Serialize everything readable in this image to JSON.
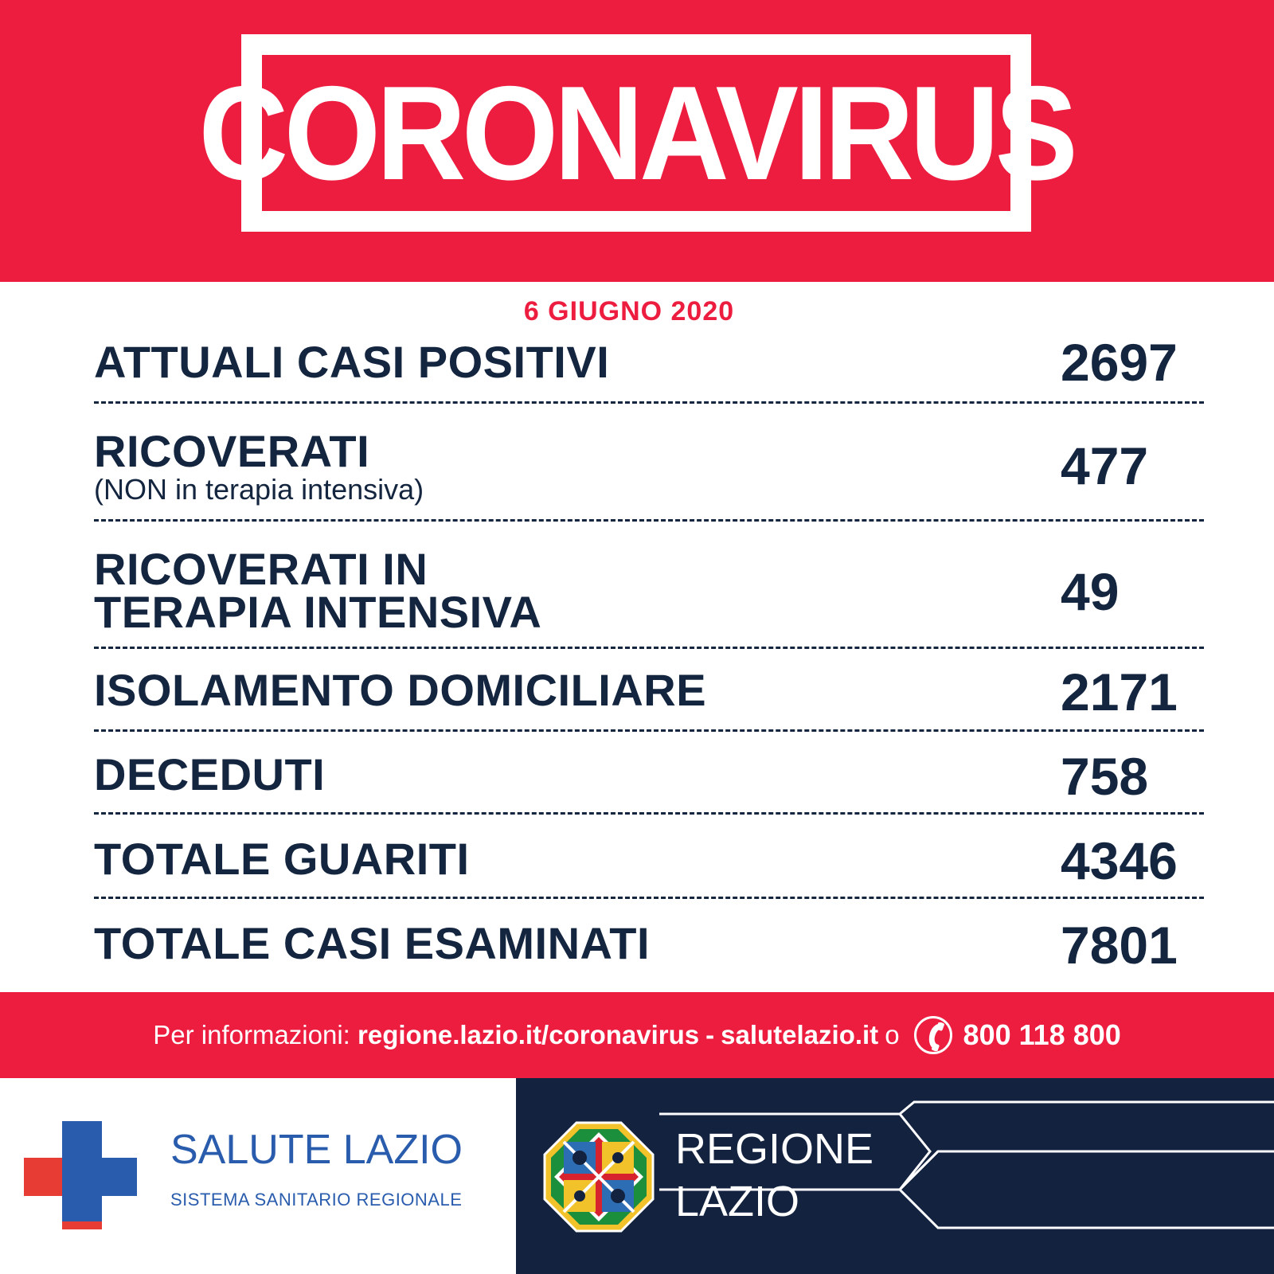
{
  "header": {
    "title": "CORONAVIRUS"
  },
  "date": "6 GIUGNO 2020",
  "stats": [
    {
      "label": "ATTUALI CASI POSITIVI",
      "value": "2697"
    },
    {
      "label": "RICOVERATI",
      "sublabel": "(NON in terapia intensiva)",
      "value": "477"
    },
    {
      "label_line1": "RICOVERATI IN",
      "label_line2": "TERAPIA INTENSIVA",
      "value": "49"
    },
    {
      "label": "ISOLAMENTO DOMICILIARE",
      "value": "2171"
    },
    {
      "label": "DECEDUTI",
      "value": "758"
    },
    {
      "label": "TOTALE GUARITI",
      "value": "4346"
    },
    {
      "label": "TOTALE CASI ESAMINATI",
      "value": "7801"
    }
  ],
  "info": {
    "prefix": "Per informazioni:",
    "link1": "regione.lazio.it/coronavirus",
    "dash": "-",
    "link2": "salutelazio.it",
    "or": "o",
    "phone_icon": "phone-icon",
    "phone": "800 118 800"
  },
  "footer": {
    "salute_title": "SALUTE LAZIO",
    "salute_subtitle": "SISTEMA SANITARIO REGIONALE",
    "regione_line1": "REGIONE",
    "regione_line2": "LAZIO"
  },
  "colors": {
    "red": "#ed1d40",
    "navy": "#14253f",
    "footer_navy": "#13223f",
    "salute_blue": "#2a5cad",
    "cross_red": "#e73c34"
  }
}
